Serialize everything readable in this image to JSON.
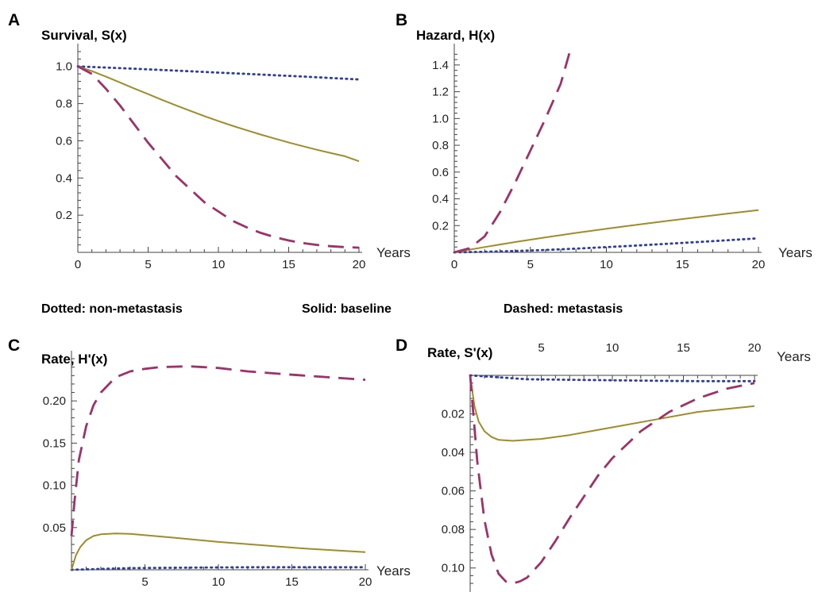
{
  "legend": {
    "dotted": "Dotted: non-metastasis",
    "solid": "Solid: baseline",
    "dashed": "Dashed: metastasis"
  },
  "colors": {
    "non_metastasis": "#2e3ea0",
    "baseline": "#a08c28",
    "metastasis": "#a0306a"
  },
  "chart_data": [
    {
      "type": "line",
      "panel": "A",
      "title": "Survival, S(x)",
      "xlabel": "Years",
      "xlim": [
        0,
        20
      ],
      "ylim": [
        0,
        1.08
      ],
      "x_ticks": [
        "0",
        "5",
        "10",
        "15",
        "20"
      ],
      "y_ticks": [
        "0.2",
        "0.4",
        "0.6",
        "0.8",
        "1.0"
      ],
      "series": [
        {
          "style": "dotted",
          "x": [
            0,
            2,
            4,
            6,
            8,
            10,
            12,
            14,
            16,
            18,
            20
          ],
          "y": [
            1.0,
            0.994,
            0.988,
            0.981,
            0.974,
            0.967,
            0.96,
            0.953,
            0.946,
            0.938,
            0.93
          ]
        },
        {
          "style": "solid",
          "x": [
            0,
            1,
            2,
            3,
            4,
            5,
            6,
            7,
            8,
            9,
            10,
            11,
            12,
            13,
            14,
            15,
            16,
            17,
            18,
            19,
            20
          ],
          "y": [
            1.0,
            0.975,
            0.945,
            0.914,
            0.882,
            0.851,
            0.82,
            0.79,
            0.761,
            0.733,
            0.706,
            0.681,
            0.657,
            0.634,
            0.612,
            0.591,
            0.571,
            0.552,
            0.534,
            0.517,
            0.49
          ]
        },
        {
          "style": "dashed",
          "x": [
            0,
            1,
            2,
            3,
            4,
            5,
            6,
            7,
            8,
            9,
            10,
            11,
            12,
            13,
            14,
            15,
            16,
            17,
            18,
            19,
            20
          ],
          "y": [
            1.0,
            0.96,
            0.88,
            0.79,
            0.69,
            0.59,
            0.5,
            0.41,
            0.34,
            0.27,
            0.22,
            0.17,
            0.135,
            0.105,
            0.082,
            0.064,
            0.05,
            0.04,
            0.033,
            0.028,
            0.025
          ]
        }
      ]
    },
    {
      "type": "line",
      "panel": "B",
      "title": "Hazard, H(x)",
      "xlabel": "Years",
      "xlim": [
        0,
        20
      ],
      "ylim": [
        0,
        1.5
      ],
      "x_ticks": [
        "0",
        "5",
        "10",
        "15",
        "20"
      ],
      "y_ticks": [
        "0.2",
        "0.4",
        "0.6",
        "0.8",
        "1.0",
        "1.2",
        "1.4"
      ],
      "series": [
        {
          "style": "dotted",
          "x": [
            0,
            2,
            4,
            6,
            8,
            10,
            12,
            14,
            16,
            18,
            20
          ],
          "y": [
            0.0,
            0.004,
            0.01,
            0.018,
            0.028,
            0.039,
            0.051,
            0.064,
            0.077,
            0.091,
            0.105
          ]
        },
        {
          "style": "solid",
          "x": [
            0,
            2,
            4,
            6,
            8,
            10,
            12,
            14,
            16,
            18,
            20
          ],
          "y": [
            0.0,
            0.04,
            0.077,
            0.112,
            0.145,
            0.176,
            0.206,
            0.235,
            0.262,
            0.29,
            0.316
          ]
        },
        {
          "style": "dashed",
          "x": [
            0,
            1,
            2,
            3,
            4,
            5,
            6,
            7,
            7.6
          ],
          "y": [
            0.0,
            0.03,
            0.12,
            0.3,
            0.52,
            0.76,
            1.0,
            1.26,
            1.5
          ]
        }
      ]
    },
    {
      "type": "line",
      "panel": "C",
      "title": "Rate, H'(x)",
      "xlabel": "Years",
      "xlim": [
        0,
        20
      ],
      "ylim": [
        0,
        0.25
      ],
      "x_ticks": [
        "5",
        "10",
        "15",
        "20"
      ],
      "y_ticks": [
        "0.05",
        "0.10",
        "0.15",
        "0.20"
      ],
      "series": [
        {
          "style": "dotted",
          "x": [
            0,
            4,
            8,
            12,
            16,
            20
          ],
          "y": [
            0.0,
            0.002,
            0.0025,
            0.003,
            0.003,
            0.003
          ]
        },
        {
          "style": "solid",
          "x": [
            0,
            0.3,
            0.6,
            1,
            1.5,
            2,
            3,
            4,
            5,
            7,
            10,
            13,
            16,
            20
          ],
          "y": [
            0.0,
            0.017,
            0.027,
            0.035,
            0.04,
            0.042,
            0.043,
            0.0425,
            0.041,
            0.038,
            0.033,
            0.029,
            0.025,
            0.021
          ]
        },
        {
          "style": "dashed",
          "x": [
            0,
            0.2,
            0.5,
            1,
            1.5,
            2,
            3,
            4,
            5,
            6,
            8,
            10,
            12,
            15,
            20
          ],
          "y": [
            0.04,
            0.08,
            0.13,
            0.17,
            0.195,
            0.21,
            0.228,
            0.235,
            0.238,
            0.24,
            0.241,
            0.239,
            0.235,
            0.231,
            0.225
          ]
        }
      ]
    },
    {
      "type": "line",
      "panel": "D",
      "title": "Rate, S'(x)",
      "xlabel": "Years",
      "xlim": [
        0,
        20
      ],
      "ylim": [
        0.11,
        0
      ],
      "x_ticks": [
        "5",
        "10",
        "15",
        "20"
      ],
      "y_ticks": [
        "0.02",
        "0.04",
        "0.06",
        "0.08",
        "0.10"
      ],
      "series": [
        {
          "style": "dotted",
          "x": [
            0,
            4,
            8,
            12,
            16,
            20
          ],
          "y": [
            0.0,
            0.002,
            0.0024,
            0.0027,
            0.003,
            0.003
          ]
        },
        {
          "style": "solid",
          "x": [
            0,
            0.3,
            0.6,
            1,
            1.5,
            2,
            3,
            4,
            5,
            7,
            10,
            13,
            16,
            20
          ],
          "y": [
            0.0,
            0.016,
            0.024,
            0.029,
            0.032,
            0.0335,
            0.034,
            0.0335,
            0.033,
            0.031,
            0.027,
            0.023,
            0.019,
            0.016
          ]
        },
        {
          "style": "dashed",
          "x": [
            0,
            0.5,
            1,
            1.5,
            2,
            2.5,
            3,
            3.5,
            4,
            5,
            6,
            7,
            8,
            9,
            10,
            12,
            14,
            16,
            18,
            20
          ],
          "y": [
            0.0,
            0.045,
            0.075,
            0.093,
            0.103,
            0.107,
            0.108,
            0.107,
            0.105,
            0.097,
            0.086,
            0.074,
            0.063,
            0.052,
            0.043,
            0.029,
            0.019,
            0.012,
            0.007,
            0.004
          ]
        }
      ]
    }
  ]
}
